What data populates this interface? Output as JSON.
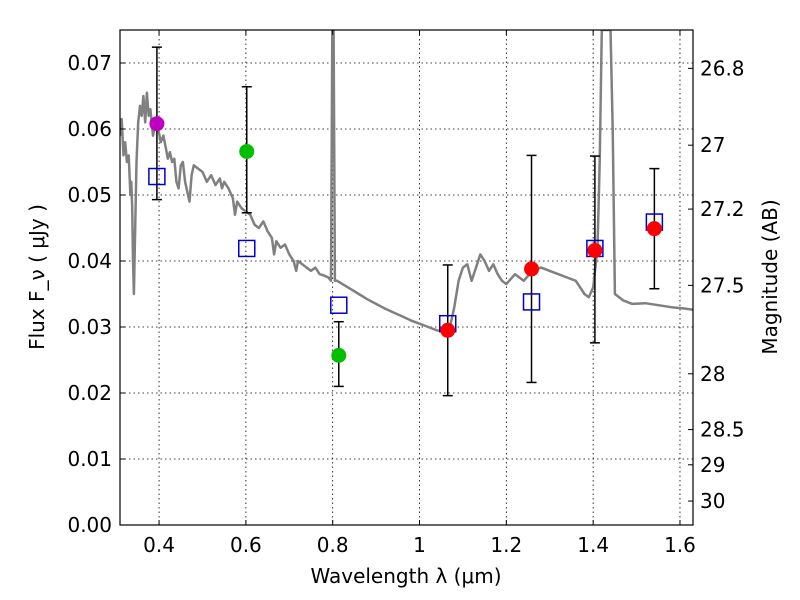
{
  "chart_data": {
    "type": "scatter",
    "xlabel": "Wavelength  λ (μm)",
    "ylabel": "Flux  F_ν  ( μJy )",
    "y2label": "Magnitude (AB)",
    "xlim": [
      0.31,
      1.63
    ],
    "ylim": [
      0.0,
      0.075
    ],
    "grid": true,
    "colors": {
      "model": "#808080",
      "purple": "#bf00bf",
      "green": "#00bf00",
      "red": "#ff0000",
      "square": "#0000cc",
      "errorbar": "#000000"
    },
    "x_ticks": [
      {
        "value": 0.4,
        "label": "0.4"
      },
      {
        "value": 0.6,
        "label": "0.6"
      },
      {
        "value": 0.8,
        "label": "0.8"
      },
      {
        "value": 1.0,
        "label": "1"
      },
      {
        "value": 1.2,
        "label": "1.2"
      },
      {
        "value": 1.4,
        "label": "1.4"
      },
      {
        "value": 1.6,
        "label": "1.6"
      }
    ],
    "y_ticks": [
      {
        "value": 0.0,
        "label": "0.00"
      },
      {
        "value": 0.01,
        "label": "0.01"
      },
      {
        "value": 0.02,
        "label": "0.02"
      },
      {
        "value": 0.03,
        "label": "0.03"
      },
      {
        "value": 0.04,
        "label": "0.04"
      },
      {
        "value": 0.05,
        "label": "0.05"
      },
      {
        "value": 0.06,
        "label": "0.06"
      },
      {
        "value": 0.07,
        "label": "0.07"
      }
    ],
    "mag_ticks": [
      {
        "mag": 26.8,
        "label": "26.8"
      },
      {
        "mag": 27.0,
        "label": "27"
      },
      {
        "mag": 27.2,
        "label": "27.2"
      },
      {
        "mag": 27.5,
        "label": "27.5"
      },
      {
        "mag": 28.0,
        "label": "28"
      },
      {
        "mag": 28.5,
        "label": "28.5"
      },
      {
        "mag": 29.0,
        "label": "29"
      },
      {
        "mag": 30.0,
        "label": "30"
      }
    ],
    "photometry": [
      {
        "x": 0.395,
        "y": 0.0608,
        "yerr_lo": 0.0493,
        "yerr_hi": 0.0724,
        "color": "purple"
      },
      {
        "x": 0.602,
        "y": 0.0566,
        "yerr_lo": 0.0473,
        "yerr_hi": 0.0664,
        "color": "green"
      },
      {
        "x": 0.814,
        "y": 0.0257,
        "yerr_lo": 0.021,
        "yerr_hi": 0.0308,
        "color": "green"
      },
      {
        "x": 1.065,
        "y": 0.0295,
        "yerr_lo": 0.0196,
        "yerr_hi": 0.0394,
        "color": "red"
      },
      {
        "x": 1.258,
        "y": 0.0388,
        "yerr_lo": 0.0216,
        "yerr_hi": 0.056,
        "color": "red"
      },
      {
        "x": 1.404,
        "y": 0.0416,
        "yerr_lo": 0.0276,
        "yerr_hi": 0.0559,
        "color": "red"
      },
      {
        "x": 1.541,
        "y": 0.0449,
        "yerr_lo": 0.0358,
        "yerr_hi": 0.054,
        "color": "red"
      }
    ],
    "model_bands": [
      {
        "x": 0.395,
        "y": 0.0528
      },
      {
        "x": 0.602,
        "y": 0.0419
      },
      {
        "x": 0.814,
        "y": 0.0333
      },
      {
        "x": 1.065,
        "y": 0.0305
      },
      {
        "x": 1.258,
        "y": 0.0338
      },
      {
        "x": 1.404,
        "y": 0.0419
      },
      {
        "x": 1.541,
        "y": 0.0459
      }
    ],
    "model_sed": [
      [
        0.31,
        0.059
      ],
      [
        0.314,
        0.0615
      ],
      [
        0.318,
        0.056
      ],
      [
        0.322,
        0.058
      ],
      [
        0.326,
        0.055
      ],
      [
        0.33,
        0.056
      ],
      [
        0.334,
        0.05
      ],
      [
        0.336,
        0.052
      ],
      [
        0.338,
        0.048
      ],
      [
        0.34,
        0.04
      ],
      [
        0.342,
        0.035
      ],
      [
        0.344,
        0.042
      ],
      [
        0.348,
        0.055
      ],
      [
        0.352,
        0.061
      ],
      [
        0.356,
        0.0635
      ],
      [
        0.36,
        0.062
      ],
      [
        0.364,
        0.065
      ],
      [
        0.368,
        0.061
      ],
      [
        0.372,
        0.0655
      ],
      [
        0.376,
        0.062
      ],
      [
        0.38,
        0.063
      ],
      [
        0.386,
        0.059
      ],
      [
        0.392,
        0.061
      ],
      [
        0.398,
        0.06
      ],
      [
        0.404,
        0.058
      ],
      [
        0.41,
        0.059
      ],
      [
        0.416,
        0.057
      ],
      [
        0.42,
        0.0555
      ],
      [
        0.425,
        0.0565
      ],
      [
        0.43,
        0.055
      ],
      [
        0.435,
        0.0555
      ],
      [
        0.44,
        0.052
      ],
      [
        0.445,
        0.051
      ],
      [
        0.45,
        0.0545
      ],
      [
        0.455,
        0.055
      ],
      [
        0.46,
        0.052
      ],
      [
        0.465,
        0.0505
      ],
      [
        0.47,
        0.049
      ],
      [
        0.475,
        0.053
      ],
      [
        0.48,
        0.0545
      ],
      [
        0.49,
        0.054
      ],
      [
        0.5,
        0.0535
      ],
      [
        0.51,
        0.052
      ],
      [
        0.52,
        0.053
      ],
      [
        0.53,
        0.0515
      ],
      [
        0.54,
        0.0525
      ],
      [
        0.545,
        0.051
      ],
      [
        0.55,
        0.052
      ],
      [
        0.56,
        0.051
      ],
      [
        0.57,
        0.0495
      ],
      [
        0.575,
        0.047
      ],
      [
        0.58,
        0.049
      ],
      [
        0.59,
        0.048
      ],
      [
        0.6,
        0.0475
      ],
      [
        0.61,
        0.047
      ],
      [
        0.62,
        0.0455
      ],
      [
        0.63,
        0.045
      ],
      [
        0.64,
        0.046
      ],
      [
        0.65,
        0.0445
      ],
      [
        0.66,
        0.0435
      ],
      [
        0.665,
        0.041
      ],
      [
        0.67,
        0.043
      ],
      [
        0.68,
        0.042
      ],
      [
        0.69,
        0.0425
      ],
      [
        0.7,
        0.041
      ],
      [
        0.71,
        0.04
      ],
      [
        0.716,
        0.0385
      ],
      [
        0.72,
        0.04
      ],
      [
        0.73,
        0.0395
      ],
      [
        0.74,
        0.039
      ],
      [
        0.75,
        0.0385
      ],
      [
        0.76,
        0.039
      ],
      [
        0.77,
        0.038
      ],
      [
        0.78,
        0.0378
      ],
      [
        0.79,
        0.0375
      ],
      [
        0.796,
        0.037
      ],
      [
        0.799,
        0.075
      ],
      [
        0.802,
        0.075
      ],
      [
        0.805,
        0.037
      ],
      [
        0.81,
        0.037
      ],
      [
        0.82,
        0.0366
      ],
      [
        0.84,
        0.0358
      ],
      [
        0.86,
        0.035
      ],
      [
        0.88,
        0.0342
      ],
      [
        0.9,
        0.0335
      ],
      [
        0.92,
        0.0328
      ],
      [
        0.94,
        0.0322
      ],
      [
        0.96,
        0.0316
      ],
      [
        0.98,
        0.031
      ],
      [
        1.0,
        0.0305
      ],
      [
        1.02,
        0.03
      ],
      [
        1.04,
        0.0295
      ],
      [
        1.06,
        0.0292
      ],
      [
        1.07,
        0.03
      ],
      [
        1.08,
        0.033
      ],
      [
        1.09,
        0.037
      ],
      [
        1.1,
        0.039
      ],
      [
        1.11,
        0.0395
      ],
      [
        1.12,
        0.037
      ],
      [
        1.13,
        0.039
      ],
      [
        1.14,
        0.041
      ],
      [
        1.15,
        0.04
      ],
      [
        1.16,
        0.0385
      ],
      [
        1.17,
        0.0395
      ],
      [
        1.18,
        0.038
      ],
      [
        1.19,
        0.037
      ],
      [
        1.2,
        0.0365
      ],
      [
        1.22,
        0.038
      ],
      [
        1.24,
        0.037
      ],
      [
        1.26,
        0.0385
      ],
      [
        1.28,
        0.039
      ],
      [
        1.3,
        0.0385
      ],
      [
        1.32,
        0.038
      ],
      [
        1.34,
        0.0375
      ],
      [
        1.36,
        0.037
      ],
      [
        1.38,
        0.035
      ],
      [
        1.39,
        0.0345
      ],
      [
        1.4,
        0.036
      ],
      [
        1.41,
        0.042
      ],
      [
        1.415,
        0.055
      ],
      [
        1.42,
        0.075
      ],
      [
        1.44,
        0.075
      ],
      [
        1.445,
        0.06
      ],
      [
        1.45,
        0.035
      ],
      [
        1.47,
        0.034
      ],
      [
        1.49,
        0.0335
      ],
      [
        1.52,
        0.0336
      ],
      [
        1.55,
        0.0333
      ],
      [
        1.58,
        0.033
      ],
      [
        1.61,
        0.0328
      ],
      [
        1.63,
        0.0326
      ]
    ]
  }
}
